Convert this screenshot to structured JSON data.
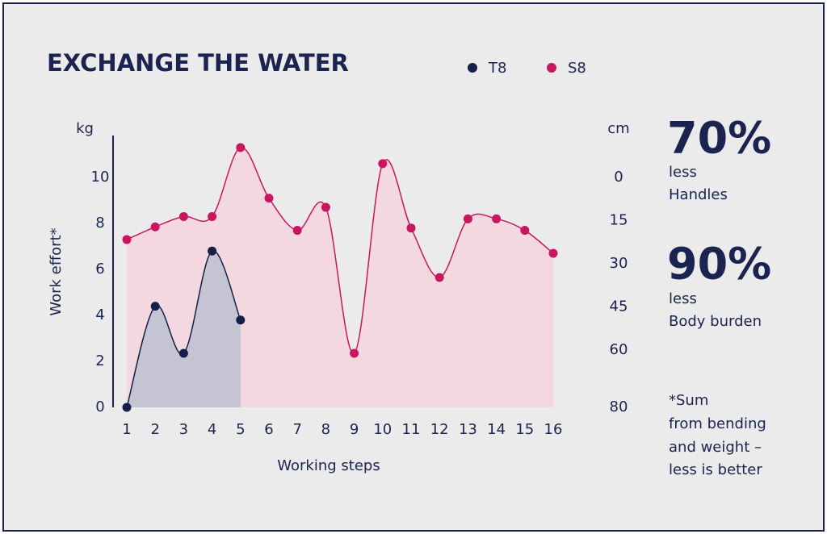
{
  "chart_data": {
    "type": "line",
    "title": "EXCHANGE THE WATER",
    "y_label": "Work effort*",
    "y_unit": "kg",
    "y2_unit": "cm",
    "x_label": "Working steps",
    "categories": [
      "1",
      "2",
      "3",
      "4",
      "5",
      "6",
      "7",
      "8",
      "9",
      "10",
      "11",
      "12",
      "13",
      "14",
      "15",
      "16"
    ],
    "series": [
      {
        "name": "T8",
        "color": "#14204a",
        "fill": "#bcc1d0",
        "values": [
          0,
          4.4,
          2.35,
          6.8,
          3.8,
          null,
          null,
          null,
          null,
          null,
          null,
          null,
          null,
          null,
          null,
          null
        ]
      },
      {
        "name": "S8",
        "color": "#c8175f",
        "fill": "#f3d8df",
        "values": [
          7.3,
          7.85,
          8.3,
          8.3,
          11.3,
          9.1,
          7.7,
          8.7,
          2.35,
          10.6,
          7.8,
          5.65,
          8.2,
          8.2,
          7.7,
          6.7
        ]
      }
    ],
    "ylim": [
      0,
      12
    ],
    "yticks": [
      0,
      2,
      4,
      6,
      8,
      10
    ],
    "y2lim": [
      80,
      -16
    ],
    "y2ticks": [
      0,
      15,
      30,
      45,
      60,
      80
    ],
    "annotations": [
      "70%",
      "less",
      "Handles",
      "90%",
      "less",
      "Body burden",
      "*Sum",
      "from bending",
      "and weight –",
      "less is better"
    ]
  }
}
